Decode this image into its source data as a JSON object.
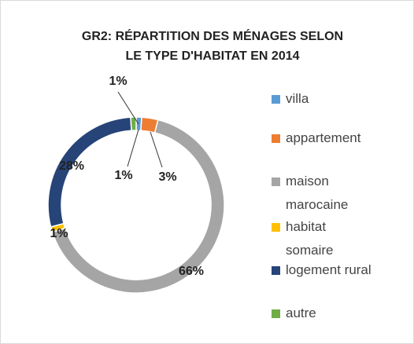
{
  "chart_data": {
    "type": "doughnut",
    "title": "GR2: RÉPARTITION DES MÉNAGES SELON LE TYPE D'HABITAT EN 2014",
    "categories": [
      "villa",
      "appartement",
      "maison marocaine",
      "habitat somaire",
      "logement rural",
      "autre"
    ],
    "values": [
      1,
      3,
      66,
      1,
      28,
      1
    ],
    "value_labels": [
      "1%",
      "3%",
      "66%",
      "1%",
      "28%",
      "1%"
    ],
    "colors": [
      "#5b9bd5",
      "#ed7d31",
      "#a5a5a5",
      "#ffc000",
      "#264478",
      "#70ad47"
    ],
    "legend": "right"
  }
}
